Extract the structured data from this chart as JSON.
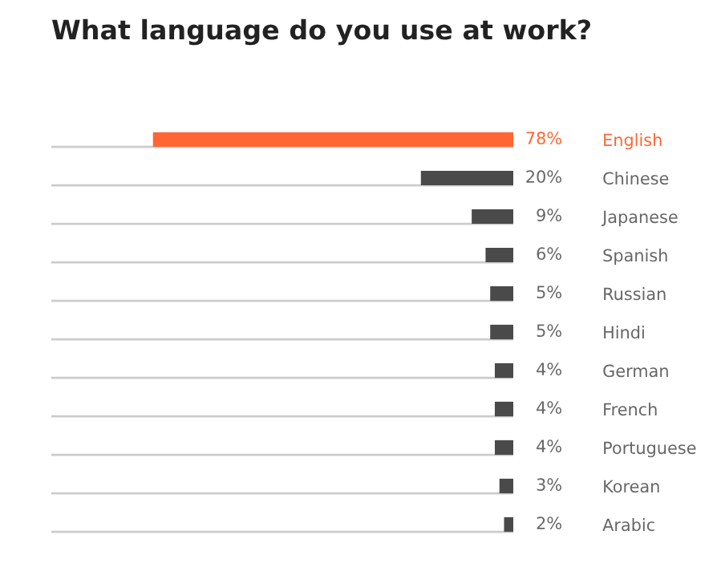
{
  "chart_data": {
    "type": "bar",
    "orientation": "horizontal",
    "title": "What language do you use at work?",
    "categories": [
      "English",
      "Chinese",
      "Japanese",
      "Spanish",
      "Russian",
      "Hindi",
      "German",
      "French",
      "Portuguese",
      "Korean",
      "Arabic"
    ],
    "values": [
      78,
      20,
      9,
      6,
      5,
      5,
      4,
      4,
      4,
      3,
      2
    ],
    "value_labels": [
      "78%",
      "20%",
      "9%",
      "6%",
      "5%",
      "5%",
      "4%",
      "4%",
      "4%",
      "3%",
      "2%"
    ],
    "colors": [
      "#ff6633",
      "#4a4a4a",
      "#4a4a4a",
      "#4a4a4a",
      "#4a4a4a",
      "#4a4a4a",
      "#4a4a4a",
      "#4a4a4a",
      "#4a4a4a",
      "#4a4a4a",
      "#4a4a4a"
    ],
    "xlim": [
      100,
      0
    ],
    "grid": "y",
    "tick_labels": "y"
  }
}
